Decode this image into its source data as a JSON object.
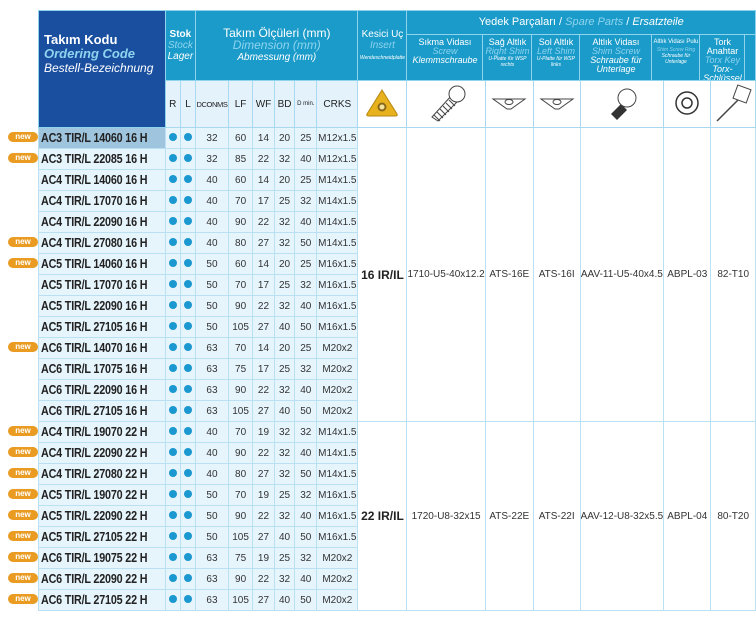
{
  "header": {
    "name": {
      "tr": "Takım Kodu",
      "en": "Ordering Code",
      "de": "Bestell-Bezeichnung"
    },
    "stock": {
      "tr": "Stok",
      "en": "Stock",
      "de": "Lager"
    },
    "dims": {
      "tr": "Takım Ölçüleri (mm)",
      "en": "Dimension (mm)",
      "de": "Abmessung (mm)"
    },
    "insert": {
      "tr": "Kesici Uç",
      "en": "Insert",
      "de": "Wendeschneidplatte"
    },
    "spare": {
      "tr": "Yedek Parçaları",
      "en": "Spare Parts",
      "de": "Ersatzteile",
      "sep": " / "
    },
    "spare_cols": [
      {
        "tr": "Sıkma Vidası",
        "en": "Screw",
        "de": "Klemmschraube",
        "icon": "screw-icon"
      },
      {
        "tr": "Sağ Altlık",
        "en": "Right Shim",
        "de": "U-Platte für WSP rechts",
        "icon": "shim-icon"
      },
      {
        "tr": "Sol Altlık",
        "en": "Left Shim",
        "de": "U-Platte für WSP links",
        "icon": "shim-icon"
      },
      {
        "tr": "Altlık Vidası",
        "en": "Shim Screw",
        "de": "Schraube für Unterlage",
        "icon": "shim-screw-icon"
      },
      {
        "tr": "Altlık Vidası Pulu",
        "en": "Shim Screw Ring",
        "de": "Schraube für Unterlage",
        "icon": "washer-icon"
      },
      {
        "tr": "Tork Anahtar",
        "en": "Torx Key",
        "de": "Torx-Schlüssel",
        "icon": "torx-key-icon"
      }
    ],
    "cols": [
      "R",
      "L",
      "DCONMS",
      "LF",
      "WF",
      "BD",
      "D min.",
      "CRKS"
    ]
  },
  "badge": "new",
  "colors": {
    "header_dark": "#1a4fa0",
    "header_teal": "#1b9bc9",
    "cell": "#e6f4fc",
    "dot": "#1a98cf",
    "badge": "#e99b22"
  },
  "groups": [
    {
      "insert": "16 IR/IL",
      "spares": [
        "1710-U5-40x12.2",
        "ATS-16E",
        "ATS-16I",
        "AAV-11-U5-40x4.5",
        "ABPL-03",
        "82-T10"
      ],
      "rows": [
        {
          "code": "AC3 TIR/L 14060 16 H",
          "new": true,
          "v": [
            "32",
            "60",
            "14",
            "20",
            "25",
            "M12x1.5"
          ],
          "selected": true
        },
        {
          "code": "AC3 TIR/L 22085 16 H",
          "new": true,
          "v": [
            "32",
            "85",
            "22",
            "32",
            "40",
            "M12x1.5"
          ]
        },
        {
          "code": "AC4 TIR/L 14060 16 H",
          "new": false,
          "v": [
            "40",
            "60",
            "14",
            "20",
            "25",
            "M14x1.5"
          ]
        },
        {
          "code": "AC4 TIR/L 17070 16 H",
          "new": false,
          "v": [
            "40",
            "70",
            "17",
            "25",
            "32",
            "M14x1.5"
          ]
        },
        {
          "code": "AC4 TIR/L 22090 16 H",
          "new": false,
          "v": [
            "40",
            "90",
            "22",
            "32",
            "40",
            "M14x1.5"
          ]
        },
        {
          "code": "AC4 TIR/L 27080 16 H",
          "new": true,
          "v": [
            "40",
            "80",
            "27",
            "32",
            "50",
            "M14x1.5"
          ]
        },
        {
          "code": "AC5 TIR/L 14060 16 H",
          "new": true,
          "v": [
            "50",
            "60",
            "14",
            "20",
            "25",
            "M16x1.5"
          ]
        },
        {
          "code": "AC5 TIR/L 17070 16 H",
          "new": false,
          "v": [
            "50",
            "70",
            "17",
            "25",
            "32",
            "M16x1.5"
          ]
        },
        {
          "code": "AC5 TIR/L 22090 16 H",
          "new": false,
          "v": [
            "50",
            "90",
            "22",
            "32",
            "40",
            "M16x1.5"
          ]
        },
        {
          "code": "AC5 TIR/L 27105 16 H",
          "new": false,
          "v": [
            "50",
            "105",
            "27",
            "40",
            "50",
            "M16x1.5"
          ]
        },
        {
          "code": "AC6 TIR/L 14070 16 H",
          "new": true,
          "v": [
            "63",
            "70",
            "14",
            "20",
            "25",
            "M20x2"
          ]
        },
        {
          "code": "AC6 TIR/L 17075 16 H",
          "new": false,
          "v": [
            "63",
            "75",
            "17",
            "25",
            "32",
            "M20x2"
          ]
        },
        {
          "code": "AC6 TIR/L 22090 16 H",
          "new": false,
          "v": [
            "63",
            "90",
            "22",
            "32",
            "40",
            "M20x2"
          ]
        },
        {
          "code": "AC6 TIR/L 27105 16 H",
          "new": false,
          "v": [
            "63",
            "105",
            "27",
            "40",
            "50",
            "M20x2"
          ]
        }
      ]
    },
    {
      "insert": "22 IR/IL",
      "spares": [
        "1720-U8-32x15",
        "ATS-22E",
        "ATS-22I",
        "AAV-12-U8-32x5.5",
        "ABPL-04",
        "80-T20"
      ],
      "rows": [
        {
          "code": "AC4 TIR/L 19070 22 H",
          "new": true,
          "v": [
            "40",
            "70",
            "19",
            "32",
            "32",
            "M14x1.5"
          ]
        },
        {
          "code": "AC4 TIR/L 22090 22 H",
          "new": true,
          "v": [
            "40",
            "90",
            "22",
            "32",
            "40",
            "M14x1.5"
          ]
        },
        {
          "code": "AC4 TIR/L 27080 22 H",
          "new": true,
          "v": [
            "40",
            "80",
            "27",
            "32",
            "50",
            "M14x1.5"
          ]
        },
        {
          "code": "AC5 TIR/L 19070 22 H",
          "new": true,
          "v": [
            "50",
            "70",
            "19",
            "25",
            "32",
            "M16x1.5"
          ]
        },
        {
          "code": "AC5 TIR/L 22090 22 H",
          "new": true,
          "v": [
            "50",
            "90",
            "22",
            "32",
            "40",
            "M16x1.5"
          ]
        },
        {
          "code": "AC5 TIR/L 27105 22 H",
          "new": true,
          "v": [
            "50",
            "105",
            "27",
            "40",
            "50",
            "M16x1.5"
          ]
        },
        {
          "code": "AC6 TIR/L 19075 22 H",
          "new": true,
          "v": [
            "63",
            "75",
            "19",
            "25",
            "32",
            "M20x2"
          ]
        },
        {
          "code": "AC6 TIR/L 22090 22 H",
          "new": true,
          "v": [
            "63",
            "90",
            "22",
            "32",
            "40",
            "M20x2"
          ]
        },
        {
          "code": "AC6 TIR/L 27105 22 H",
          "new": true,
          "v": [
            "63",
            "105",
            "27",
            "40",
            "50",
            "M20x2"
          ]
        }
      ]
    }
  ]
}
